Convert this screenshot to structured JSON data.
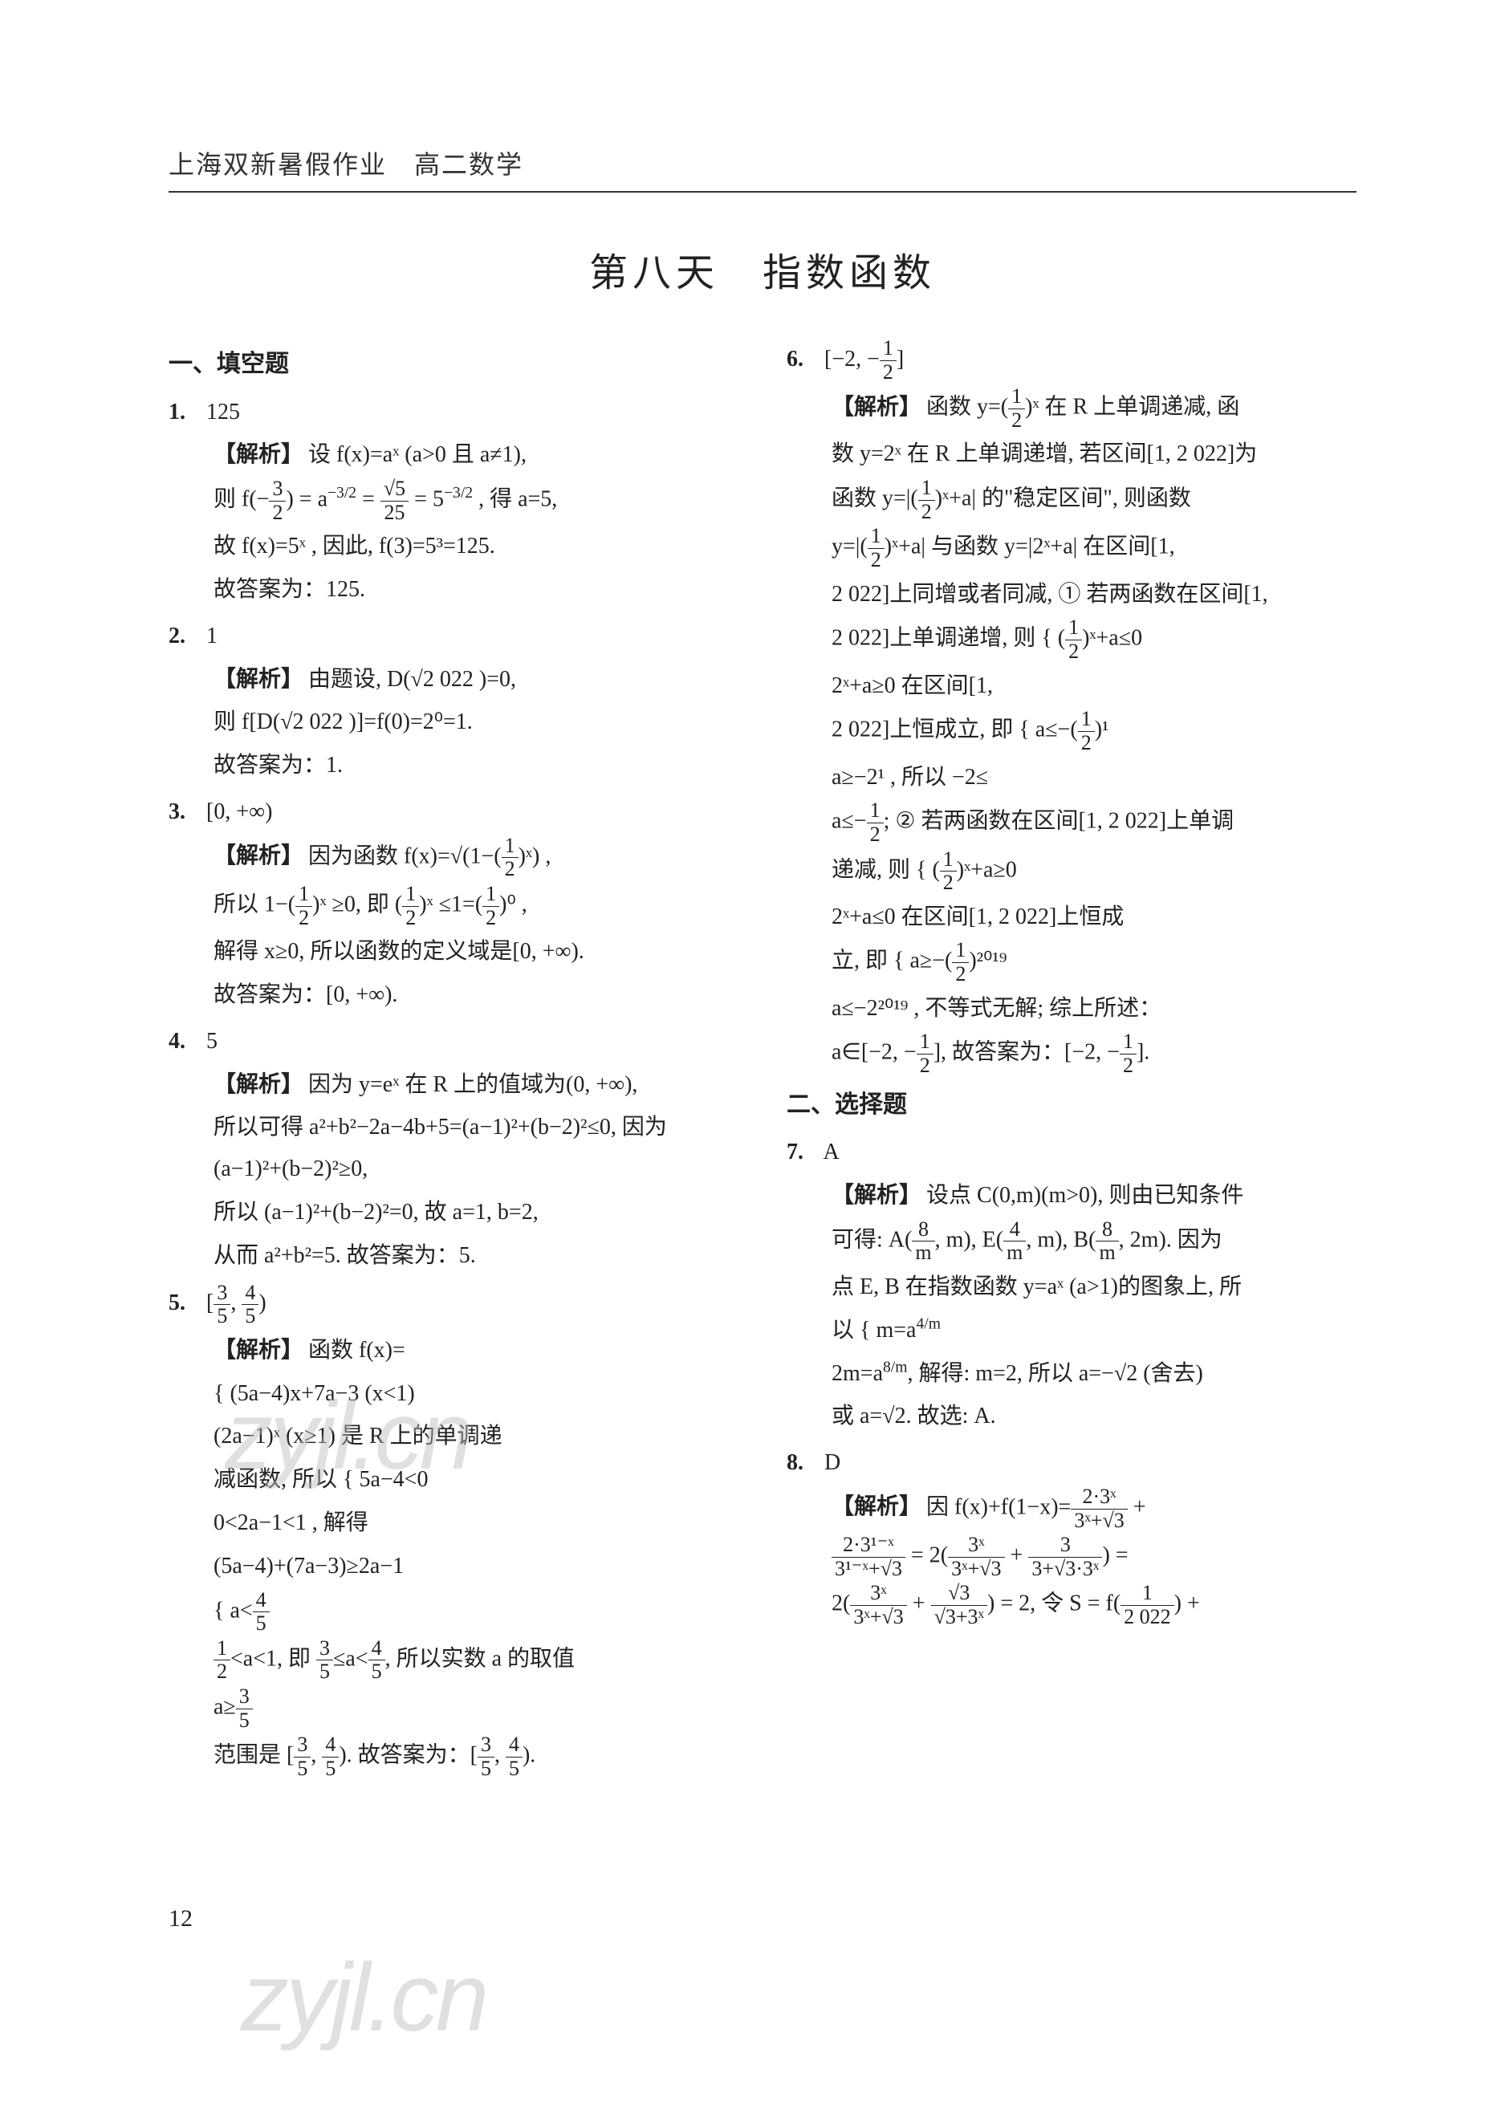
{
  "running_head": "上海双新暑假作业　高二数学",
  "title": "第八天　指数函数",
  "page_number": "12",
  "watermark": "zyjl.cn",
  "sections": {
    "fill": "一、填空题",
    "choice": "二、选择题"
  },
  "q1": {
    "num": "1.",
    "ans": "125",
    "jiexi": "【解析】",
    "l1": "设 f(x)=aˣ (a>0 且 a≠1),",
    "l2_a": "则 f(−",
    "l2_frac_t": "3",
    "l2_frac_b": "2",
    "l2_b": ") = a",
    "l2_exp": "−3/2",
    "l2_c": " = ",
    "l2_frac2_t": "√5",
    "l2_frac2_b": "25",
    "l2_d": " = 5",
    "l2_exp2": "−3/2",
    "l2_e": " , 得 a=5,",
    "l3": "故 f(x)=5ˣ , 因此, f(3)=5³=125.",
    "l4": "故答案为：125."
  },
  "q2": {
    "num": "2.",
    "ans": "1",
    "jiexi": "【解析】",
    "l1": "由题设, D(√2 022 )=0,",
    "l2": "则 f[D(√2 022 )]=f(0)=2⁰=1.",
    "l3": "故答案为：1."
  },
  "q3": {
    "num": "3.",
    "ans": "[0, +∞)",
    "jiexi": "【解析】",
    "l1a": "因为函数 f(x)=√(1−(",
    "l1_frac_t": "1",
    "l1_frac_b": "2",
    "l1b": ")ˣ) ,",
    "l2a": "所以 1−(",
    "l2_frac_t": "1",
    "l2_frac_b": "2",
    "l2b": ")ˣ ≥0, 即 (",
    "l2_frac2_t": "1",
    "l2_frac2_b": "2",
    "l2c": ")ˣ ≤1=(",
    "l2_frac3_t": "1",
    "l2_frac3_b": "2",
    "l2d": ")⁰ ,",
    "l3": "解得 x≥0, 所以函数的定义域是[0, +∞).",
    "l4": "故答案为：[0, +∞)."
  },
  "q4": {
    "num": "4.",
    "ans": "5",
    "jiexi": "【解析】",
    "l1": "因为 y=eˣ 在 R 上的值域为(0, +∞),",
    "l2": "所以可得 a²+b²−2a−4b+5=(a−1)²+(b−2)²≤0, 因为 (a−1)²+(b−2)²≥0,",
    "l3": "所以 (a−1)²+(b−2)²=0, 故 a=1, b=2,",
    "l4": "从而 a²+b²=5. 故答案为：5."
  },
  "q5": {
    "num": "5.",
    "ans_a": "[",
    "ans_f1_t": "3",
    "ans_f1_b": "5",
    "ans_b": ", ",
    "ans_f2_t": "4",
    "ans_f2_b": "5",
    "ans_c": ")",
    "jiexi": "【解析】",
    "l1": "函数 f(x)=",
    "l2": "{ (5a−4)x+7a−3  (x<1)",
    "l3": "  (2a−1)ˣ        (x≥1)   是 R 上的单调递",
    "l4": "减函数, 所以 { 5a−4<0",
    "l4b": "              0<2a−1<1           , 解得",
    "l4c": "              (5a−4)+(7a−3)≥2a−1",
    "l5a": "{ a<",
    "l5_f1_t": "4",
    "l5_f1_b": "5",
    "l6a": "  ",
    "l6_f1_t": "1",
    "l6_f1_b": "2",
    "l6b": "<a<1, 即 ",
    "l6_f2_t": "3",
    "l6_f2_b": "5",
    "l6c": "≤a<",
    "l6_f3_t": "4",
    "l6_f3_b": "5",
    "l6d": ", 所以实数 a 的取值",
    "l7a": "  a≥",
    "l7_f1_t": "3",
    "l7_f1_b": "5",
    "l8a": "范围是 [",
    "l8_f1_t": "3",
    "l8_f1_b": "5",
    "l8b": ", ",
    "l8_f2_t": "4",
    "l8_f2_b": "5",
    "l8c": "). 故答案为：[",
    "l8_f3_t": "3",
    "l8_f3_b": "5",
    "l8d": ", ",
    "l8_f4_t": "4",
    "l8_f4_b": "5",
    "l8e": ")."
  },
  "q6": {
    "num": "6.",
    "ans_a": "[−2, −",
    "ans_f_t": "1",
    "ans_f_b": "2",
    "ans_b": "]",
    "jiexi": "【解析】",
    "l1a": "函数 y=(",
    "l1_f_t": "1",
    "l1_f_b": "2",
    "l1b": ")ˣ 在 R 上单调递减, 函",
    "l2": "数 y=2ˣ 在 R 上单调递增, 若区间[1, 2 022]为",
    "l3a": "函数 y=|(",
    "l3_f_t": "1",
    "l3_f_b": "2",
    "l3b": ")ˣ+a| 的\"稳定区间\", 则函数",
    "l4a": "y=|(",
    "l4_f_t": "1",
    "l4_f_b": "2",
    "l4b": ")ˣ+a| 与函数 y=|2ˣ+a| 在区间[1,",
    "l5": "2 022]上同增或者同减, ① 若两函数在区间[1,",
    "l6a": "2 022]上单调递增, 则 { (",
    "l6_f_t": "1",
    "l6_f_b": "2",
    "l6b": ")ˣ+a≤0",
    "l6c": "                      2ˣ+a≥0   在区间[1,",
    "l7a": "2 022]上恒成立, 即 { a≤−(",
    "l7_f_t": "1",
    "l7_f_b": "2",
    "l7b": ")¹",
    "l7c": "                    a≥−2¹   , 所以 −2≤",
    "l8a": "a≤−",
    "l8_f_t": "1",
    "l8_f_b": "2",
    "l8b": "; ② 若两函数在区间[1, 2 022]上单调",
    "l9a": "递减, 则 { (",
    "l9_f_t": "1",
    "l9_f_b": "2",
    "l9b": ")ˣ+a≥0",
    "l9c": "          2ˣ+a≤0   在区间[1, 2 022]上恒成",
    "l10a": "立, 即 { a≥−(",
    "l10_f_t": "1",
    "l10_f_b": "2",
    "l10b": ")²⁰¹⁹",
    "l10c": "        a≤−2²⁰¹⁹   , 不等式无解; 综上所述：",
    "l11a": "a∈[−2, −",
    "l11_f_t": "1",
    "l11_f_b": "2",
    "l11b": "], 故答案为：[−2, −",
    "l11_f2_t": "1",
    "l11_f2_b": "2",
    "l11c": "]."
  },
  "q7": {
    "num": "7.",
    "ans": "A",
    "jiexi": "【解析】",
    "l1": "设点 C(0,m)(m>0), 则由已知条件",
    "l2a": "可得: A(",
    "l2_f1_t": "8",
    "l2_f1_b": "m",
    "l2b": ", m), E(",
    "l2_f2_t": "4",
    "l2_f2_b": "m",
    "l2c": ", m), B(",
    "l2_f3_t": "8",
    "l2_f3_b": "m",
    "l2d": ", 2m). 因为",
    "l3": "点 E, B 在指数函数 y=aˣ (a>1)的图象上, 所",
    "l4a": "以 { m=a",
    "l4e1": "4/m",
    "l4b": "",
    "l4c": "    2m=a",
    "l4e2": "8/m",
    "l4d": ",   解得: m=2, 所以 a=−√2 (舍去)",
    "l5": "或 a=√2. 故选: A."
  },
  "q8": {
    "num": "8.",
    "ans": "D",
    "jiexi": "【解析】",
    "l1a": "因 f(x)+f(1−x)=",
    "l1_f1_t": "2·3ˣ",
    "l1_f1_b": "3ˣ+√3",
    "l1b": " +",
    "l2_f1_t": "2·3¹⁻ˣ",
    "l2_f1_b": "3¹⁻ˣ+√3",
    "l2a": " = 2(",
    "l2_f2_t": "3ˣ",
    "l2_f2_b": "3ˣ+√3",
    "l2b": " + ",
    "l2_f3_t": "3",
    "l2_f3_b": "3+√3·3ˣ",
    "l2c": ") =",
    "l3a": "2(",
    "l3_f1_t": "3ˣ",
    "l3_f1_b": "3ˣ+√3",
    "l3b": " + ",
    "l3_f2_t": "√3",
    "l3_f2_b": "√3+3ˣ",
    "l3c": ") = 2, 令 S = f(",
    "l3_f3_t": "1",
    "l3_f3_b": "2 022",
    "l3d": ") +"
  }
}
